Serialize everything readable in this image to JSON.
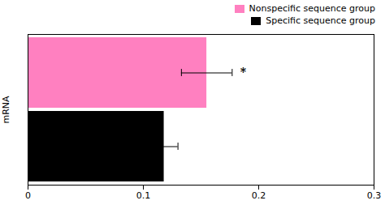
{
  "chart_data": {
    "type": "bar",
    "orientation": "horizontal",
    "ylabel": "mRNA",
    "categories": [
      "Nonspecific sequence group",
      "Specific sequence group"
    ],
    "values": [
      0.155,
      0.118
    ],
    "errors": [
      0.022,
      0.012
    ],
    "colors": [
      "#FF80C0",
      "#000000"
    ],
    "xlim": [
      0.0,
      0.3
    ],
    "xticks": [
      0.0,
      0.1,
      0.2,
      0.3
    ],
    "annotations": [
      {
        "text": "*",
        "x": 0.184,
        "category": "Nonspecific sequence group"
      }
    ],
    "legend": "upper right",
    "tick_labels": "x",
    "grid": false
  }
}
